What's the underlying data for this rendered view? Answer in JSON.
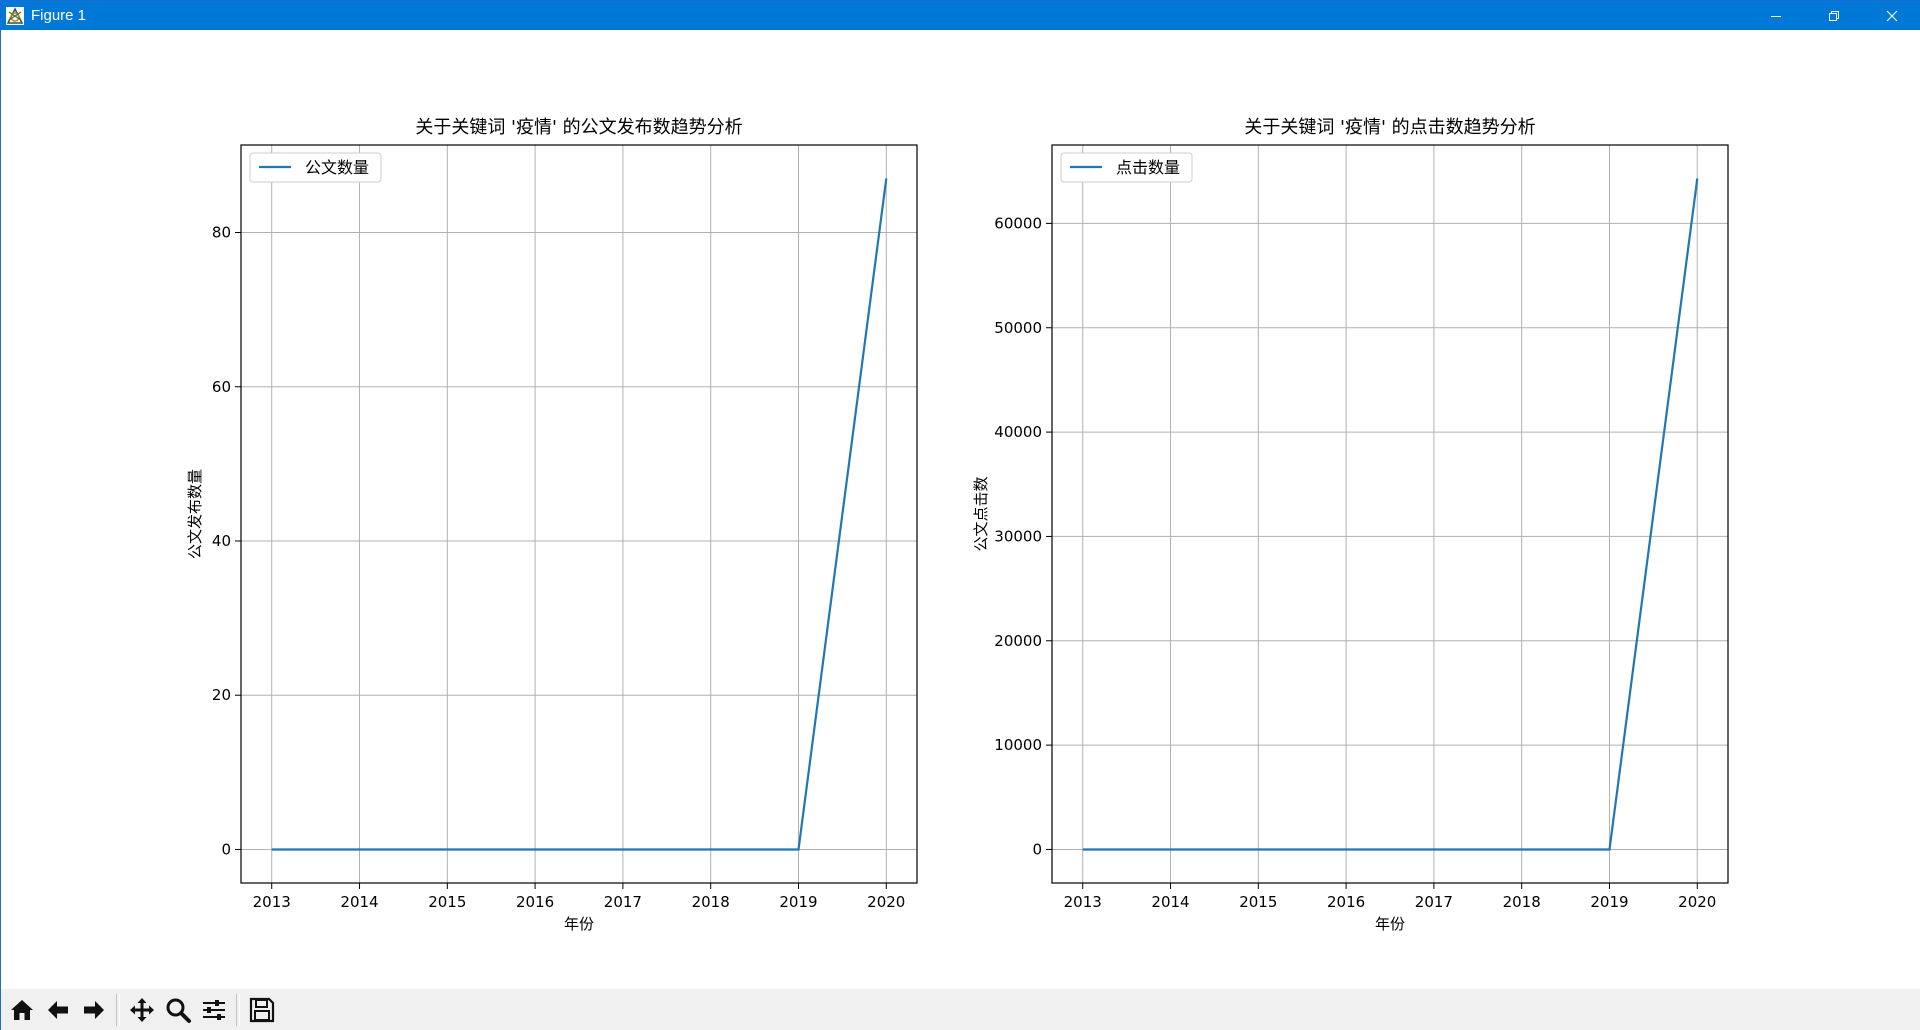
{
  "window": {
    "title": "Figure 1",
    "minimize_icon": "minimize-icon",
    "maximize_icon": "restore-icon",
    "close_icon": "close-icon"
  },
  "toolbar": {
    "buttons": [
      {
        "name": "home-button",
        "icon": "home-icon"
      },
      {
        "name": "back-button",
        "icon": "arrow-left-icon"
      },
      {
        "name": "forward-button",
        "icon": "arrow-right-icon"
      },
      {
        "name": "pan-button",
        "icon": "move-icon"
      },
      {
        "name": "zoom-button",
        "icon": "magnifier-icon"
      },
      {
        "name": "configure-subplots-button",
        "icon": "sliders-icon"
      },
      {
        "name": "save-button",
        "icon": "floppy-disk-icon"
      }
    ]
  },
  "colors": {
    "line": "#1f77b4",
    "grid": "#b0b0b0",
    "titlebar": "#0078d7"
  },
  "chart_data": [
    {
      "type": "line",
      "title": "关于关键词 '疫情' 的公文发布数趋势分析",
      "xlabel": "年份",
      "ylabel": "公文发布数量",
      "x": [
        2013,
        2014,
        2015,
        2016,
        2017,
        2018,
        2019,
        2020
      ],
      "series": [
        {
          "name": "公文数量",
          "values": [
            0,
            0,
            0,
            0,
            0,
            0,
            0,
            87
          ]
        }
      ],
      "xticks": [
        "2013",
        "2014",
        "2015",
        "2016",
        "2017",
        "2018",
        "2019",
        "2020"
      ],
      "yticks": [
        0,
        20,
        40,
        60,
        80
      ],
      "xlim": [
        2012.65,
        2020.35
      ],
      "ylim": [
        -4.35,
        91.35
      ],
      "grid": true,
      "legend": "upper left"
    },
    {
      "type": "line",
      "title": "关于关键词 '疫情' 的点击数趋势分析",
      "xlabel": "年份",
      "ylabel": "公文点击数",
      "x": [
        2013,
        2014,
        2015,
        2016,
        2017,
        2018,
        2019,
        2020
      ],
      "series": [
        {
          "name": "点击数量",
          "values": [
            0,
            0,
            0,
            0,
            0,
            0,
            0,
            64300
          ]
        }
      ],
      "xticks": [
        "2013",
        "2014",
        "2015",
        "2016",
        "2017",
        "2018",
        "2019",
        "2020"
      ],
      "yticks": [
        0,
        10000,
        20000,
        30000,
        40000,
        50000,
        60000
      ],
      "xlim": [
        2012.65,
        2020.35
      ],
      "ylim": [
        -3215,
        67515
      ],
      "grid": true,
      "legend": "upper left"
    }
  ]
}
